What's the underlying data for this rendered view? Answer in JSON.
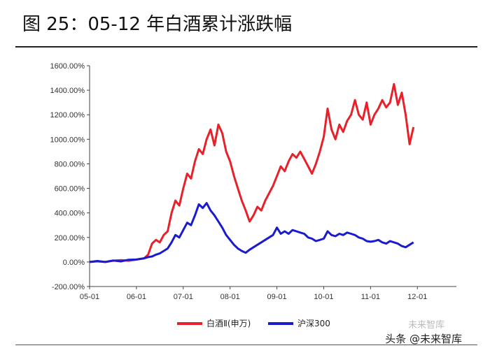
{
  "page": {
    "title": "图 25：05-12 年白酒累计涨跌幅",
    "watermark": "头条 @未来智库",
    "watermark_logo": "未来智库"
  },
  "chart_data": {
    "type": "line",
    "title": "图 25：05-12 年白酒累计涨跌幅",
    "xlabel": "",
    "ylabel": "",
    "ylim": [
      -200,
      1600
    ],
    "y_ticks": [
      -200,
      0,
      200,
      400,
      600,
      800,
      1000,
      1200,
      1400,
      1600
    ],
    "y_tick_labels": [
      "-200.00%",
      "0.00%",
      "200.00%",
      "400.00%",
      "600.00%",
      "800.00%",
      "1000.00%",
      "1200.00%",
      "1400.00%",
      "1600.00%"
    ],
    "x_ticks": [
      "05-01",
      "06-01",
      "07-01",
      "08-01",
      "09-01",
      "10-01",
      "11-01",
      "12-01"
    ],
    "x_range": [
      0,
      94
    ],
    "legend_position": "bottom",
    "series": [
      {
        "name": "白酒Ⅱ(申万)",
        "color": "#e8202a",
        "points": [
          [
            0,
            0
          ],
          [
            2,
            5
          ],
          [
            4,
            0
          ],
          [
            6,
            10
          ],
          [
            8,
            15
          ],
          [
            10,
            10
          ],
          [
            12,
            20
          ],
          [
            14,
            30
          ],
          [
            15,
            60
          ],
          [
            16,
            150
          ],
          [
            17,
            180
          ],
          [
            18,
            160
          ],
          [
            19,
            220
          ],
          [
            20,
            250
          ],
          [
            21,
            400
          ],
          [
            22,
            500
          ],
          [
            23,
            460
          ],
          [
            24,
            600
          ],
          [
            25,
            720
          ],
          [
            26,
            680
          ],
          [
            27,
            820
          ],
          [
            28,
            920
          ],
          [
            29,
            880
          ],
          [
            30,
            1000
          ],
          [
            31,
            1080
          ],
          [
            32,
            950
          ],
          [
            33,
            1120
          ],
          [
            34,
            1050
          ],
          [
            35,
            900
          ],
          [
            36,
            820
          ],
          [
            37,
            700
          ],
          [
            38,
            600
          ],
          [
            39,
            500
          ],
          [
            40,
            420
          ],
          [
            41,
            330
          ],
          [
            42,
            380
          ],
          [
            43,
            450
          ],
          [
            44,
            420
          ],
          [
            45,
            500
          ],
          [
            46,
            560
          ],
          [
            47,
            620
          ],
          [
            48,
            700
          ],
          [
            49,
            780
          ],
          [
            50,
            740
          ],
          [
            51,
            820
          ],
          [
            52,
            880
          ],
          [
            53,
            850
          ],
          [
            54,
            900
          ],
          [
            55,
            840
          ],
          [
            56,
            780
          ],
          [
            57,
            720
          ],
          [
            58,
            800
          ],
          [
            59,
            900
          ],
          [
            60,
            1020
          ],
          [
            61,
            1250
          ],
          [
            62,
            1080
          ],
          [
            63,
            1000
          ],
          [
            64,
            1120
          ],
          [
            65,
            1060
          ],
          [
            66,
            1150
          ],
          [
            67,
            1200
          ],
          [
            68,
            1320
          ],
          [
            69,
            1200
          ],
          [
            70,
            1160
          ],
          [
            71,
            1300
          ],
          [
            72,
            1120
          ],
          [
            73,
            1200
          ],
          [
            74,
            1250
          ],
          [
            75,
            1320
          ],
          [
            76,
            1260
          ],
          [
            77,
            1300
          ],
          [
            78,
            1450
          ],
          [
            79,
            1280
          ],
          [
            80,
            1380
          ],
          [
            81,
            1200
          ],
          [
            82,
            960
          ],
          [
            83,
            1100
          ]
        ]
      },
      {
        "name": "沪深300",
        "color": "#1a1acf",
        "points": [
          [
            0,
            0
          ],
          [
            2,
            8
          ],
          [
            4,
            0
          ],
          [
            6,
            12
          ],
          [
            8,
            5
          ],
          [
            10,
            18
          ],
          [
            12,
            20
          ],
          [
            14,
            30
          ],
          [
            15,
            40
          ],
          [
            16,
            45
          ],
          [
            17,
            60
          ],
          [
            18,
            70
          ],
          [
            19,
            90
          ],
          [
            20,
            110
          ],
          [
            21,
            160
          ],
          [
            22,
            220
          ],
          [
            23,
            200
          ],
          [
            24,
            260
          ],
          [
            25,
            320
          ],
          [
            26,
            300
          ],
          [
            27,
            380
          ],
          [
            28,
            470
          ],
          [
            29,
            440
          ],
          [
            30,
            480
          ],
          [
            31,
            420
          ],
          [
            32,
            380
          ],
          [
            33,
            330
          ],
          [
            34,
            280
          ],
          [
            35,
            220
          ],
          [
            36,
            180
          ],
          [
            37,
            140
          ],
          [
            38,
            110
          ],
          [
            39,
            90
          ],
          [
            40,
            75
          ],
          [
            41,
            100
          ],
          [
            42,
            120
          ],
          [
            43,
            140
          ],
          [
            44,
            160
          ],
          [
            45,
            180
          ],
          [
            46,
            200
          ],
          [
            47,
            220
          ],
          [
            48,
            280
          ],
          [
            49,
            230
          ],
          [
            50,
            250
          ],
          [
            51,
            230
          ],
          [
            52,
            260
          ],
          [
            53,
            250
          ],
          [
            54,
            240
          ],
          [
            55,
            230
          ],
          [
            56,
            200
          ],
          [
            57,
            190
          ],
          [
            58,
            170
          ],
          [
            59,
            180
          ],
          [
            60,
            190
          ],
          [
            61,
            250
          ],
          [
            62,
            220
          ],
          [
            63,
            210
          ],
          [
            64,
            230
          ],
          [
            65,
            220
          ],
          [
            66,
            240
          ],
          [
            67,
            230
          ],
          [
            68,
            220
          ],
          [
            69,
            200
          ],
          [
            70,
            190
          ],
          [
            71,
            170
          ],
          [
            72,
            165
          ],
          [
            73,
            170
          ],
          [
            74,
            180
          ],
          [
            75,
            160
          ],
          [
            76,
            150
          ],
          [
            77,
            170
          ],
          [
            78,
            160
          ],
          [
            79,
            150
          ],
          [
            80,
            130
          ],
          [
            81,
            120
          ],
          [
            82,
            140
          ],
          [
            83,
            160
          ]
        ]
      }
    ]
  }
}
